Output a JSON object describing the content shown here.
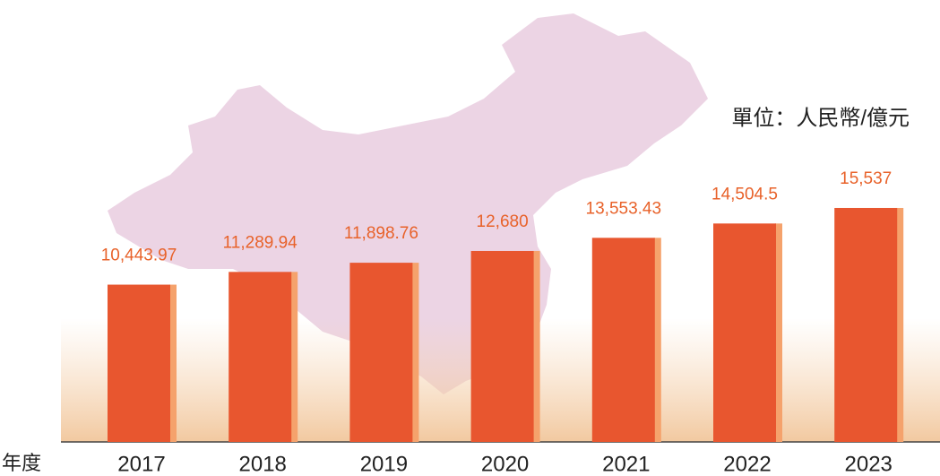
{
  "chart_data": {
    "type": "bar",
    "unit": "單位：人民幣/億元",
    "x_label": "年度",
    "categories": [
      "2017",
      "2018",
      "2019",
      "2020",
      "2021",
      "2022",
      "2023"
    ],
    "values": [
      10443.97,
      11289.94,
      11898.76,
      12680,
      13553.43,
      14504.5,
      15537
    ],
    "value_labels": [
      "10,443.97",
      "11,289.94",
      "11,898.76",
      "12,680",
      "13,553.43",
      "14,504.5",
      "15,537"
    ],
    "color": "#e8562f",
    "shadow_color": "#f5a26c",
    "ylim": [
      0,
      20000
    ]
  }
}
